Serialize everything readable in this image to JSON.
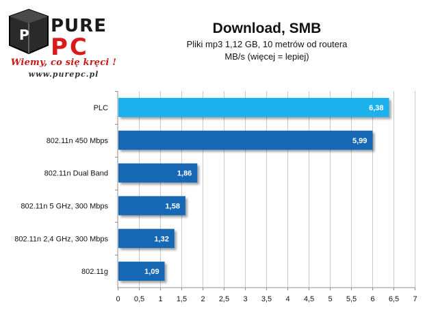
{
  "logo": {
    "brand_top": "PURE",
    "brand_bottom": "PC",
    "slogan": "Wiemy, co się kręci !",
    "url": "www.purepc.pl"
  },
  "chart_data": {
    "type": "bar",
    "orientation": "horizontal",
    "title": "Download, SMB",
    "subtitle": [
      "Pliki mp3 1,12 GB, 10 metrów od routera",
      "MB/s (więcej = lepiej)"
    ],
    "categories": [
      "PLC",
      "802.11n 450 Mbps",
      "802.11n Dual Band",
      "802.11n 5 GHz, 300 Mbps",
      "802.11n 2,4 GHz, 300 Mbps",
      "802.11g"
    ],
    "values": [
      6.38,
      5.99,
      1.86,
      1.58,
      1.32,
      1.09
    ],
    "value_labels": [
      "6,38",
      "5,99",
      "1,86",
      "1,58",
      "1,32",
      "1,09"
    ],
    "bar_colors": [
      "#1ab0ec",
      "#1668b4",
      "#1668b4",
      "#1668b4",
      "#1668b4",
      "#1668b4"
    ],
    "xlim": [
      0,
      7
    ],
    "xticks": [
      0,
      0.5,
      1,
      1.5,
      2,
      2.5,
      3,
      3.5,
      4,
      4.5,
      5,
      5.5,
      6,
      6.5,
      7
    ],
    "xtick_labels": [
      "0",
      "0,5",
      "1",
      "1,5",
      "2",
      "2,5",
      "3",
      "3,5",
      "4",
      "4,5",
      "5",
      "5,5",
      "6",
      "6,5",
      "7"
    ],
    "grid": "vertical",
    "legend": "none"
  }
}
